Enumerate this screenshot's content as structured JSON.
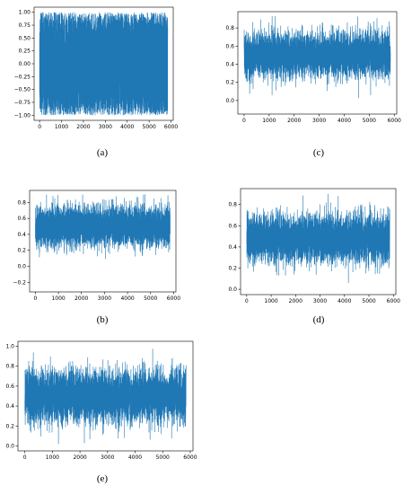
{
  "chart_data": [
    {
      "id": "a",
      "caption": "(a)",
      "type": "line",
      "x_ticks": [
        0,
        1000,
        2000,
        3000,
        4000,
        5000,
        6000
      ],
      "y_ticks": [
        -1.0,
        -0.75,
        -0.5,
        -0.25,
        0.0,
        0.25,
        0.5,
        0.75,
        1.0
      ],
      "y_tick_labels": [
        "−1.00",
        "−0.75",
        "−0.50",
        "−0.25",
        "0.00",
        "0.25",
        "0.50",
        "0.75",
        "1.00"
      ],
      "xlim": [
        -250,
        6100
      ],
      "ylim": [
        -1.1,
        1.1
      ],
      "n_points": 5850,
      "series_color": "#1f77b4",
      "signal": {
        "center": 0.0,
        "spread": 1.0,
        "min": -1.0,
        "max": 1.0,
        "kind": "uniform"
      }
    },
    {
      "id": "c",
      "caption": "(c)",
      "type": "line",
      "x_ticks": [
        0,
        1000,
        2000,
        3000,
        4000,
        5000,
        6000
      ],
      "y_ticks": [
        0.0,
        0.2,
        0.4,
        0.6,
        0.8
      ],
      "y_tick_labels": [
        "0.0",
        "0.2",
        "0.4",
        "0.6",
        "0.8"
      ],
      "xlim": [
        -250,
        6100
      ],
      "ylim": [
        -0.15,
        0.98
      ],
      "n_points": 5850,
      "series_color": "#1f77b4",
      "signal": {
        "center": 0.5,
        "spread": 0.12,
        "min": -0.1,
        "max": 0.93,
        "kind": "gauss"
      }
    },
    {
      "id": "b",
      "caption": "(b)",
      "type": "line",
      "x_ticks": [
        0,
        1000,
        2000,
        3000,
        4000,
        5000,
        6000
      ],
      "y_ticks": [
        -0.2,
        0.0,
        0.2,
        0.4,
        0.6,
        0.8
      ],
      "y_tick_labels": [
        "−0.2",
        "0.0",
        "0.2",
        "0.4",
        "0.6",
        "0.8"
      ],
      "xlim": [
        -250,
        6100
      ],
      "ylim": [
        -0.32,
        0.95
      ],
      "n_points": 5850,
      "series_color": "#1f77b4",
      "signal": {
        "center": 0.5,
        "spread": 0.12,
        "min": -0.25,
        "max": 0.9,
        "kind": "gauss"
      }
    },
    {
      "id": "d",
      "caption": "(d)",
      "type": "line",
      "x_ticks": [
        0,
        1000,
        2000,
        3000,
        4000,
        5000,
        6000
      ],
      "y_ticks": [
        0.0,
        0.2,
        0.4,
        0.6,
        0.8
      ],
      "y_tick_labels": [
        "0.0",
        "0.2",
        "0.4",
        "0.6",
        "0.8"
      ],
      "xlim": [
        -250,
        6100
      ],
      "ylim": [
        -0.05,
        0.95
      ],
      "n_points": 5850,
      "series_color": "#1f77b4",
      "signal": {
        "center": 0.48,
        "spread": 0.11,
        "min": 0.0,
        "max": 0.9,
        "kind": "gauss"
      }
    },
    {
      "id": "e",
      "caption": "(e)",
      "type": "line",
      "x_ticks": [
        0,
        1000,
        2000,
        3000,
        4000,
        5000,
        6000
      ],
      "y_ticks": [
        0.0,
        0.2,
        0.4,
        0.6,
        0.8,
        1.0
      ],
      "y_tick_labels": [
        "0.0",
        "0.2",
        "0.4",
        "0.6",
        "0.8",
        "1.0"
      ],
      "xlim": [
        -250,
        6100
      ],
      "ylim": [
        -0.05,
        1.05
      ],
      "n_points": 5850,
      "series_color": "#1f77b4",
      "signal": {
        "center": 0.5,
        "spread": 0.13,
        "min": 0.02,
        "max": 0.99,
        "kind": "gauss"
      }
    }
  ]
}
